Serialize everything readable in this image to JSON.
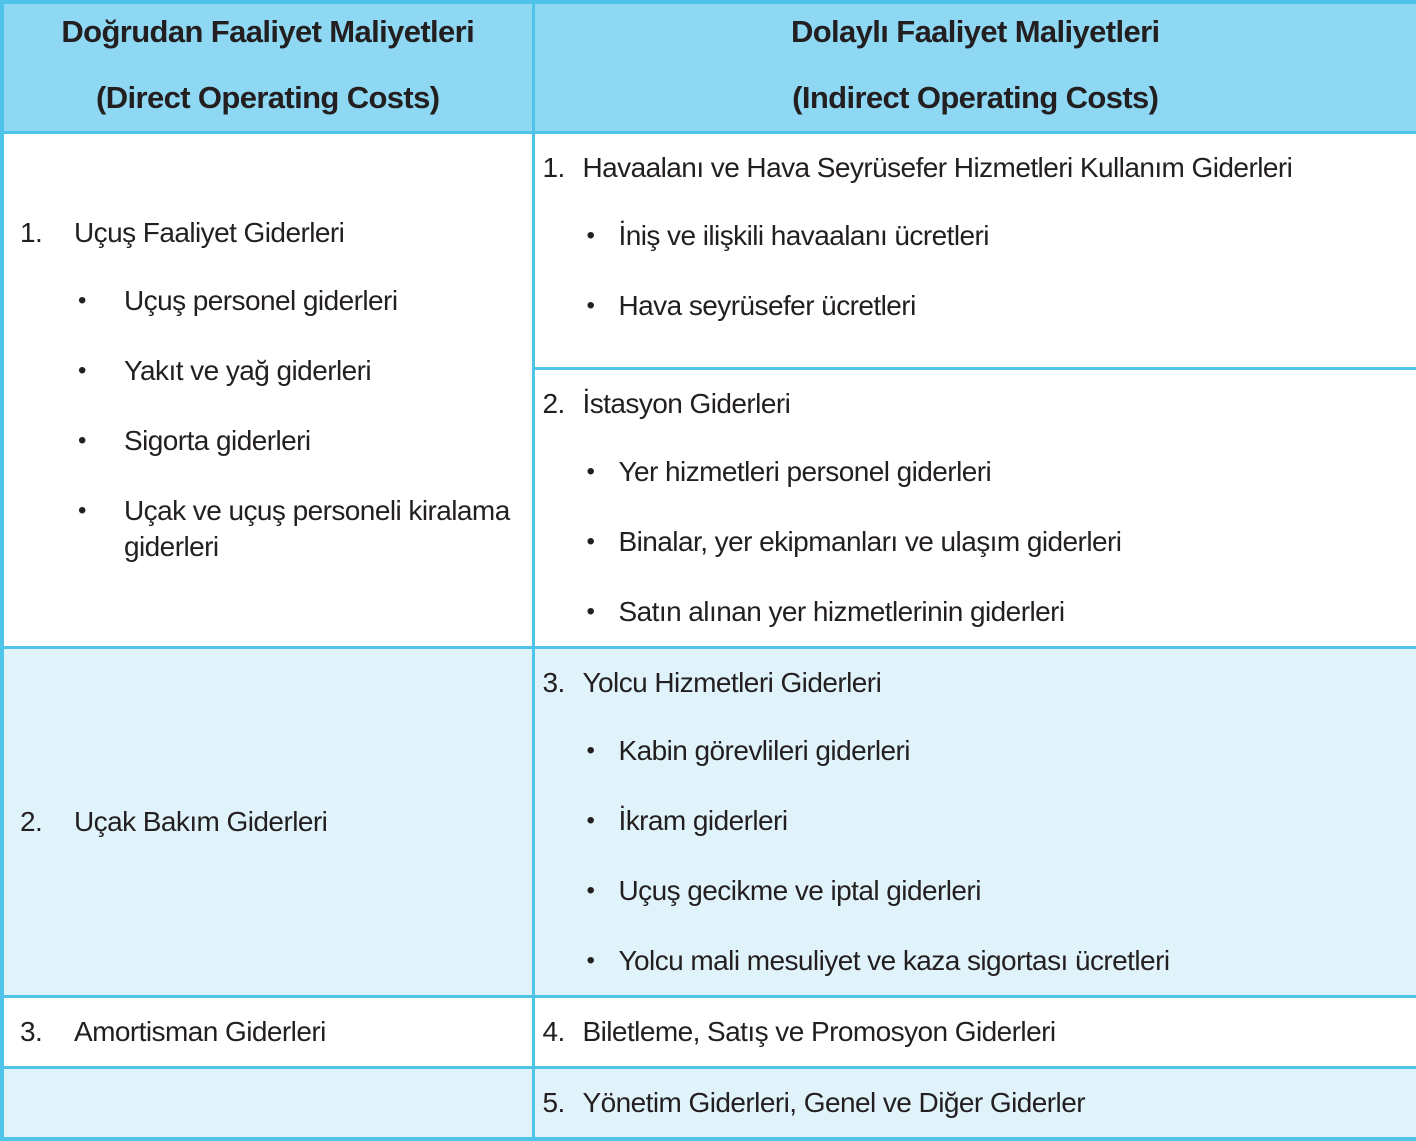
{
  "colors": {
    "border": "#4fc4e9",
    "header_bg": "#8ed8f3",
    "row_alt_bg": "#e0f3fb",
    "text": "#231f20"
  },
  "glyphs": {
    "bullet": "•"
  },
  "header": {
    "direct": {
      "title": "Doğrudan Faaliyet Maliyetleri",
      "subtitle": "(Direct Operating Costs)"
    },
    "indirect": {
      "title": "Dolaylı Faaliyet Maliyetleri",
      "subtitle": "(Indirect Operating Costs)"
    }
  },
  "direct_costs": [
    {
      "number": "1.",
      "label": "Uçuş Faaliyet Giderleri",
      "bullets": [
        "Uçuş personel giderleri",
        "Yakıt ve yağ giderleri",
        "Sigorta giderleri",
        "Uçak ve uçuş personeli kiralama giderleri"
      ]
    },
    {
      "number": "2.",
      "label": "Uçak Bakım Giderleri",
      "bullets": []
    },
    {
      "number": "3.",
      "label": "Amortisman Giderleri",
      "bullets": []
    }
  ],
  "indirect_costs": [
    {
      "number": "1.",
      "label": "Havaalanı ve Hava Seyrüsefer Hizmetleri Kullanım Giderleri",
      "bullets": [
        "İniş ve ilişkili havaalanı ücretleri",
        "Hava seyrüsefer ücretleri"
      ]
    },
    {
      "number": "2.",
      "label": "İstasyon Giderleri",
      "bullets": [
        "Yer hizmetleri personel giderleri",
        "Binalar, yer ekipmanları ve ulaşım giderleri",
        "Satın alınan yer hizmetlerinin giderleri"
      ]
    },
    {
      "number": "3.",
      "label": "Yolcu Hizmetleri Giderleri",
      "bullets": [
        "Kabin görevlileri giderleri",
        "İkram giderleri",
        "Uçuş gecikme ve iptal giderleri",
        "Yolcu mali mesuliyet ve kaza sigortası ücretleri"
      ]
    },
    {
      "number": "4.",
      "label": "Biletleme, Satış ve Promosyon Giderleri",
      "bullets": []
    },
    {
      "number": "5.",
      "label": "Yönetim Giderleri, Genel ve Diğer Giderler",
      "bullets": []
    }
  ]
}
